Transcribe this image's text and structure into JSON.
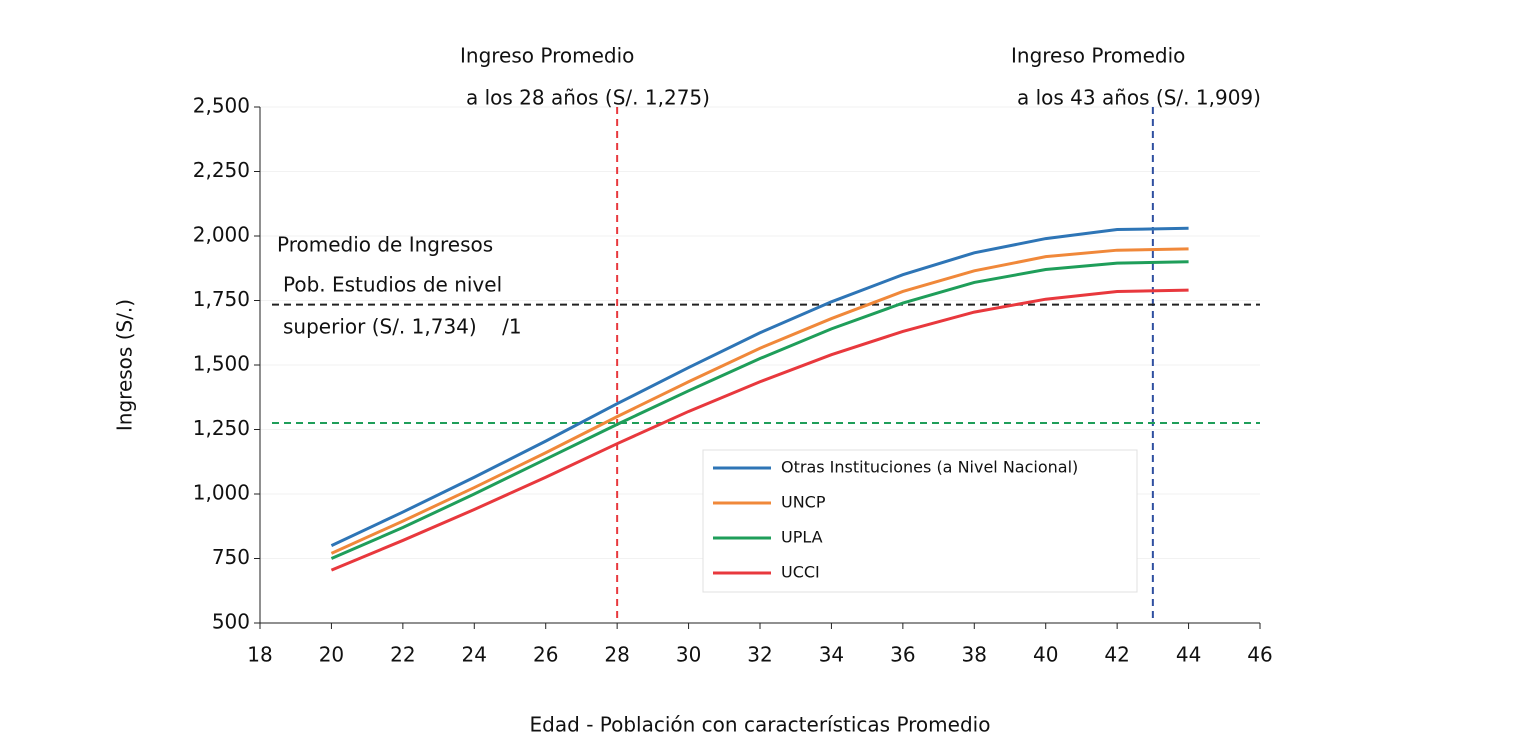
{
  "chart_data": {
    "type": "line",
    "x_label": "Edad - Población con características Promedio",
    "y_label": "Ingresos (S/.)",
    "x": [
      20,
      22,
      24,
      26,
      28,
      30,
      32,
      34,
      36,
      38,
      40,
      42,
      44
    ],
    "series": [
      {
        "name": "Otras Instituciones (a Nivel Nacional)",
        "color": "#2e75b6",
        "values": [
          800,
          930,
          1065,
          1205,
          1350,
          1490,
          1625,
          1745,
          1850,
          1935,
          1990,
          2025,
          2030
        ]
      },
      {
        "name": "UNCP",
        "color": "#f0883a",
        "values": [
          770,
          895,
          1025,
          1160,
          1300,
          1435,
          1565,
          1680,
          1785,
          1865,
          1920,
          1945,
          1950
        ]
      },
      {
        "name": "UPLA",
        "color": "#1f9e5a",
        "values": [
          750,
          870,
          1000,
          1135,
          1270,
          1400,
          1525,
          1640,
          1740,
          1820,
          1870,
          1895,
          1900
        ]
      },
      {
        "name": "UCCI",
        "color": "#e8383d",
        "values": [
          705,
          820,
          940,
          1065,
          1195,
          1320,
          1435,
          1540,
          1630,
          1705,
          1755,
          1785,
          1790
        ]
      }
    ],
    "xlim": [
      18,
      46
    ],
    "xticks": [
      18,
      20,
      22,
      24,
      26,
      28,
      30,
      32,
      34,
      36,
      38,
      40,
      42,
      44,
      46
    ],
    "ylim": [
      500,
      2500
    ],
    "yticks": [
      {
        "value": 500,
        "label": "500"
      },
      {
        "value": 750,
        "label": "750"
      },
      {
        "value": 1000,
        "label": "1,000"
      },
      {
        "value": 1250,
        "label": "1,250"
      },
      {
        "value": 1500,
        "label": "1,500"
      },
      {
        "value": 1750,
        "label": "1,750"
      },
      {
        "value": 2000,
        "label": "2,000"
      },
      {
        "value": 2250,
        "label": "2,250"
      },
      {
        "value": 2500,
        "label": "2,500"
      }
    ],
    "grid": true,
    "legend": "lower right",
    "reference_lines": [
      {
        "axis": "x",
        "value": 28,
        "color": "#e8383d"
      },
      {
        "axis": "x",
        "value": 43,
        "color": "#2f4fa0"
      },
      {
        "axis": "y",
        "value": 1734,
        "color": "#222222"
      },
      {
        "axis": "y",
        "value": 1275,
        "color": "#1f9e5a"
      }
    ],
    "annotations": [
      {
        "lines": [
          "Ingreso Promedio",
          "a los 28 años (S/. 1,275)"
        ]
      },
      {
        "lines": [
          "Ingreso Promedio",
          "a los 43 años (S/. 1,909)"
        ]
      },
      {
        "lines": [
          "Promedio de Ingresos",
          "Pob. Estudios de nivel",
          "superior (S/. 1,734)    /1"
        ]
      }
    ]
  }
}
